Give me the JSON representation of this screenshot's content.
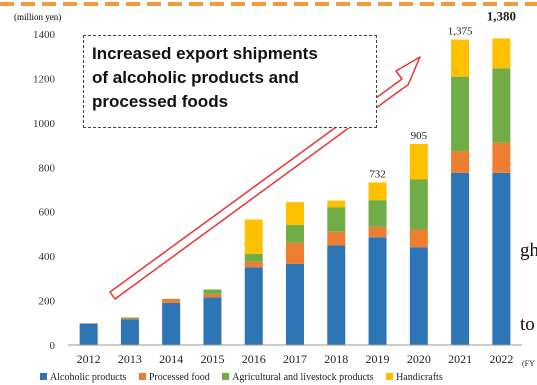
{
  "side_text": [
    "gh.",
    "to"
  ],
  "callout": {
    "line1": "Increased export shipments",
    "line2": "of alcoholic products and",
    "line3": "processed foods"
  },
  "chart_data": {
    "type": "bar",
    "stacked": true,
    "unit_label": "(million yen)",
    "x_unit": "(FY",
    "categories": [
      "2012",
      "2013",
      "2014",
      "2015",
      "2016",
      "2017",
      "2018",
      "2019",
      "2020",
      "2021",
      "2022"
    ],
    "series": [
      {
        "name": "Alcoholic products",
        "color": "#2e75b6",
        "values": [
          96,
          115,
          190,
          215,
          350,
          365,
          448,
          485,
          440,
          775,
          775
        ]
      },
      {
        "name": "Processed food",
        "color": "#ed7d31",
        "values": [
          2,
          4,
          18,
          15,
          25,
          95,
          62,
          47,
          80,
          98,
          135
        ]
      },
      {
        "name": "Agricultural and livestock products",
        "color": "#70ad47",
        "values": [
          0,
          5,
          0,
          20,
          35,
          80,
          110,
          120,
          225,
          335,
          335
        ]
      },
      {
        "name": "Handicrafts",
        "color": "#ffc000",
        "values": [
          0,
          0,
          0,
          0,
          155,
          103,
          30,
          80,
          160,
          167,
          135
        ]
      }
    ],
    "data_labels": {
      "2019": "732",
      "2020": "905",
      "2021": "1,375",
      "2022": "1,380"
    },
    "y_ticks": [
      0,
      200,
      400,
      600,
      800,
      1000,
      1200,
      1400
    ],
    "ylim": [
      0,
      1400
    ],
    "grid": false,
    "legend_position": "bottom"
  }
}
